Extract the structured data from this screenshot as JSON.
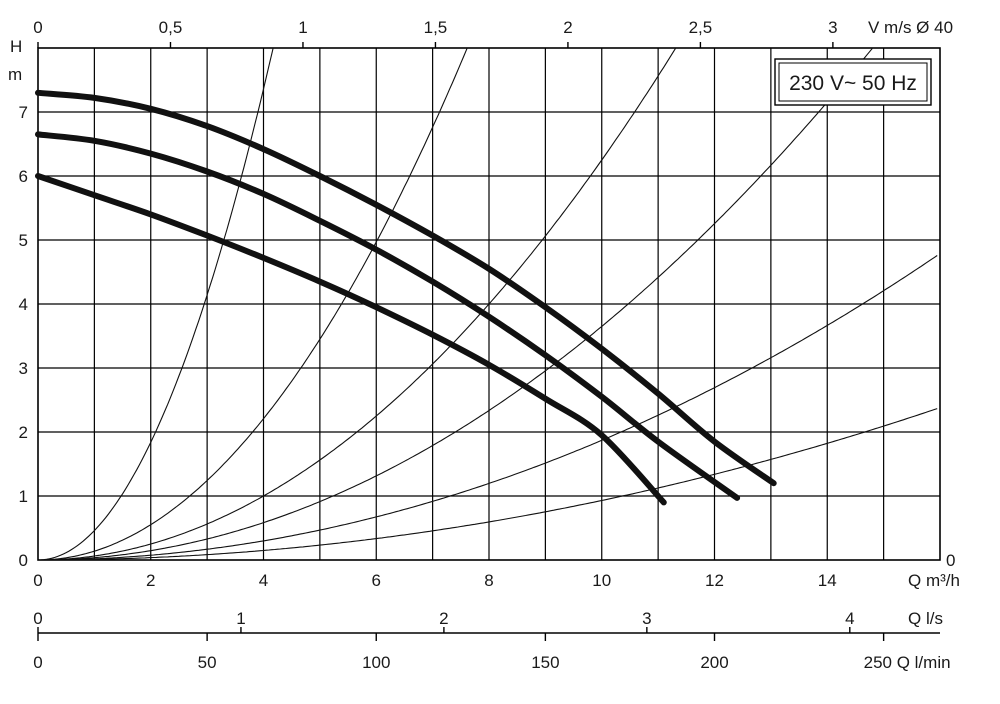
{
  "chart_data": {
    "type": "line",
    "title": "",
    "annotation": "230 V~ 50 Hz",
    "grid": true,
    "xlim": [
      0,
      16
    ],
    "ylim": [
      0,
      8
    ],
    "x_ticks": [
      "0",
      "2",
      "4",
      "6",
      "8",
      "10",
      "12",
      "14"
    ],
    "y_ticks": [
      "0",
      "1",
      "2",
      "3",
      "4",
      "5",
      "6",
      "7"
    ],
    "xlabel": "Q m³/h",
    "ylabel": "H",
    "ylabel_unit": "m",
    "right_axis_zero": "0",
    "top_axis": {
      "label": "V m/s Ø 40",
      "ticks": [
        {
          "label": "0",
          "q": 0
        },
        {
          "label": "0,5",
          "q": 2.35
        },
        {
          "label": "1",
          "q": 4.7
        },
        {
          "label": "1,5",
          "q": 7.05
        },
        {
          "label": "2",
          "q": 9.4
        },
        {
          "label": "2,5",
          "q": 11.75
        },
        {
          "label": "3",
          "q": 14.1
        }
      ]
    },
    "ls_axis": {
      "label": "Q l/s",
      "ticks": [
        {
          "label": "0",
          "q": 0
        },
        {
          "label": "1",
          "q": 3.6
        },
        {
          "label": "2",
          "q": 7.2
        },
        {
          "label": "3",
          "q": 10.8
        },
        {
          "label": "4",
          "q": 14.4
        }
      ]
    },
    "lmin_axis": {
      "label": "250 Q l/min",
      "ticks": [
        {
          "label": "0",
          "q": 0
        },
        {
          "label": "50",
          "q": 3
        },
        {
          "label": "100",
          "q": 6
        },
        {
          "label": "150",
          "q": 9
        },
        {
          "label": "200",
          "q": 12
        },
        {
          "label": "250 Q l/min",
          "q": 15
        }
      ]
    },
    "series": [
      {
        "values": [
          [
            0,
            7.3
          ],
          [
            1,
            7.22
          ],
          [
            2,
            7.05
          ],
          [
            3,
            6.78
          ],
          [
            4,
            6.42
          ],
          [
            5,
            6.0
          ],
          [
            6,
            5.55
          ],
          [
            7,
            5.07
          ],
          [
            8,
            4.55
          ],
          [
            9,
            3.95
          ],
          [
            10,
            3.3
          ],
          [
            11,
            2.6
          ],
          [
            12,
            1.85
          ],
          [
            13.05,
            1.2
          ]
        ]
      },
      {
        "values": [
          [
            0,
            6.65
          ],
          [
            1,
            6.55
          ],
          [
            2,
            6.35
          ],
          [
            3,
            6.07
          ],
          [
            4,
            5.72
          ],
          [
            5,
            5.3
          ],
          [
            6,
            4.85
          ],
          [
            7,
            4.35
          ],
          [
            8,
            3.8
          ],
          [
            9,
            3.2
          ],
          [
            10,
            2.55
          ],
          [
            11,
            1.85
          ],
          [
            12.4,
            0.97
          ]
        ]
      },
      {
        "values": [
          [
            0,
            6.0
          ],
          [
            1,
            5.7
          ],
          [
            2,
            5.4
          ],
          [
            3,
            5.07
          ],
          [
            4,
            4.72
          ],
          [
            5,
            4.35
          ],
          [
            6,
            3.95
          ],
          [
            7,
            3.52
          ],
          [
            8,
            3.05
          ],
          [
            9,
            2.52
          ],
          [
            10,
            1.95
          ],
          [
            11.1,
            0.9
          ]
        ]
      }
    ],
    "system_curves": [
      {
        "k": 0.46
      },
      {
        "k": 0.138
      },
      {
        "k": 0.0625
      },
      {
        "k": 0.0365
      },
      {
        "k": 0.0187
      },
      {
        "k": 0.0093
      }
    ]
  }
}
